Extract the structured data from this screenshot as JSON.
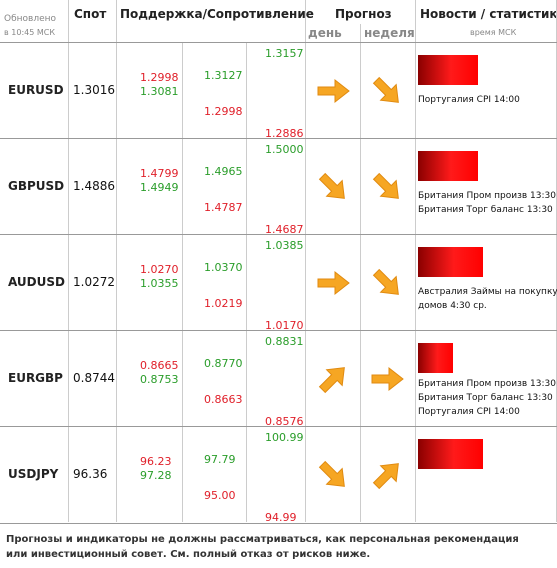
{
  "header": {
    "updated": "Обновлено",
    "updated_time": "в 10:45 МСК",
    "spot": "Спот",
    "levels": "Поддержка/Сопротивление",
    "forecast": "Прогноз",
    "day": "день",
    "week": "неделя",
    "news": "Новости / статистика",
    "news_time": "время МСК"
  },
  "rows": [
    {
      "pair": "EURUSD",
      "spot": "1.3016",
      "levels": [
        [
          "1.3081",
          "1.2998"
        ],
        [
          "1.3127",
          "1.2998"
        ],
        [
          "1.3157",
          "1.2886"
        ]
      ],
      "news": [
        "Португалия CPI 14:00"
      ]
    },
    {
      "pair": "GBPUSD",
      "spot": "1.4886",
      "levels": [
        [
          "1.4949",
          "1.4799"
        ],
        [
          "1.4965",
          "1.4787"
        ],
        [
          "1.5000",
          "1.4687"
        ]
      ],
      "news": [
        "Британия Пром произв 13:30",
        "Британия Торг баланс 13:30"
      ]
    },
    {
      "pair": "AUDUSD",
      "spot": "1.0272",
      "levels": [
        [
          "1.0355",
          "1.0270"
        ],
        [
          "1.0370",
          "1.0219"
        ],
        [
          "1.0385",
          "1.0170"
        ]
      ],
      "news": [
        "Австралия Займы на покупку",
        "домов 4:30 ср."
      ]
    },
    {
      "pair": "EURGBP",
      "spot": "0.8744",
      "levels": [
        [
          "0.8753",
          "0.8665"
        ],
        [
          "0.8770",
          "0.8663"
        ],
        [
          "0.8831",
          "0.8576"
        ]
      ],
      "news": [
        "Британия Пром произв 13:30",
        "Британия Торг баланс 13:30",
        "Португалия CPI 14:00"
      ]
    },
    {
      "pair": "USDJPY",
      "spot": "96.36",
      "levels": [
        [
          "97.28",
          "96.23"
        ],
        [
          "97.79",
          "95.00"
        ],
        [
          "100.99",
          "94.99"
        ]
      ],
      "news": []
    }
  ],
  "footer": "Прогнозы и индикаторы не должны рассматриваться, как персональная рекомендация или инвестиционный совет. См. полный отказ от рисков ниже."
}
